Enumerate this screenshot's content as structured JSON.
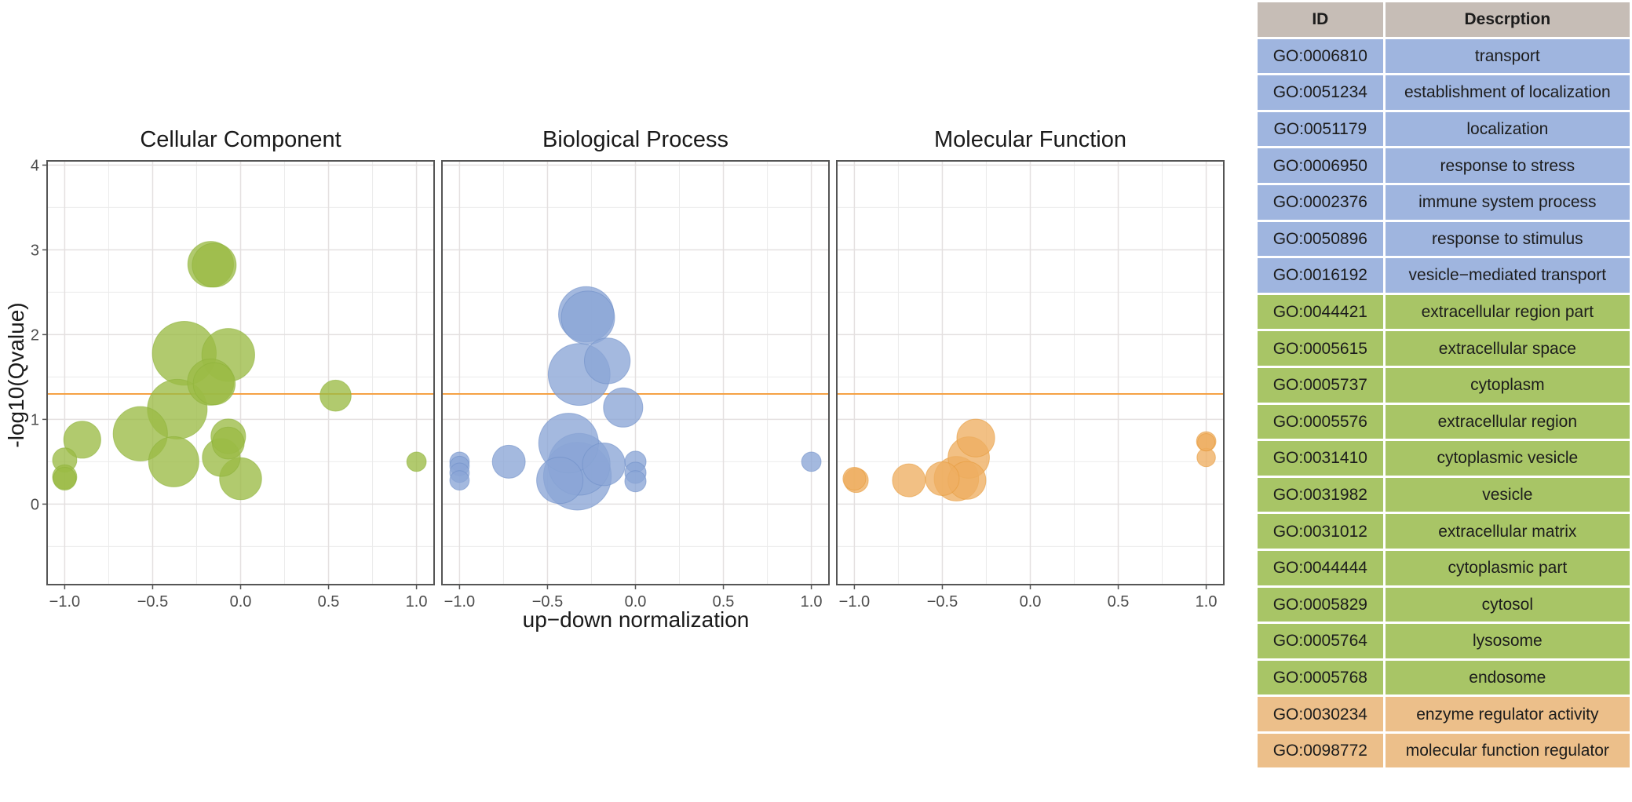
{
  "chart_data": {
    "type": "scatter",
    "subtype": "bubble",
    "xlabel": "up−down normalization",
    "ylabel": "-log10(Qvalue)",
    "xlim": [
      -1.1,
      1.1
    ],
    "ylim": [
      -0.95,
      4.05
    ],
    "x_ticks": [
      -1.0,
      -0.5,
      0.0,
      0.5,
      1.0
    ],
    "x_tick_labels": [
      "−1.0",
      "−0.5",
      "0.0",
      "0.5",
      "1.0"
    ],
    "y_ticks": [
      0,
      1,
      2,
      3,
      4
    ],
    "y_tick_labels": [
      "0",
      "1",
      "2",
      "3",
      "4"
    ],
    "threshold_line": {
      "y": 1.3,
      "color": "#f5a245"
    },
    "grid": true,
    "panels": [
      {
        "title": "Cellular Component",
        "color": "#8db33a",
        "fill": "#9bbb45",
        "points": [
          {
            "x": -0.17,
            "y": 2.83,
            "size": 3.2
          },
          {
            "x": -0.15,
            "y": 2.82,
            "size": 2.9
          },
          {
            "x": -0.32,
            "y": 1.78,
            "size": 7.0
          },
          {
            "x": -0.07,
            "y": 1.76,
            "size": 4.5
          },
          {
            "x": -0.17,
            "y": 1.44,
            "size": 3.3
          },
          {
            "x": -0.15,
            "y": 1.42,
            "size": 2.6
          },
          {
            "x": -0.36,
            "y": 1.12,
            "size": 6.0
          },
          {
            "x": -0.57,
            "y": 0.83,
            "size": 4.8
          },
          {
            "x": -0.9,
            "y": 0.76,
            "size": 1.9
          },
          {
            "x": -0.07,
            "y": 0.8,
            "size": 1.6
          },
          {
            "x": -0.07,
            "y": 0.72,
            "size": 1.3
          },
          {
            "x": -0.11,
            "y": 0.55,
            "size": 2.0
          },
          {
            "x": -0.38,
            "y": 0.5,
            "size": 4.0
          },
          {
            "x": -1.0,
            "y": 0.52,
            "size": 0.6
          },
          {
            "x": -1.0,
            "y": 0.32,
            "size": 0.6
          },
          {
            "x": -1.0,
            "y": 0.3,
            "size": 0.5
          },
          {
            "x": 0.0,
            "y": 0.3,
            "size": 2.6
          },
          {
            "x": 0.54,
            "y": 1.28,
            "size": 1.2
          },
          {
            "x": 1.0,
            "y": 0.5,
            "size": 0.3
          }
        ]
      },
      {
        "title": "Biological Process",
        "color": "#6f8fc8",
        "fill": "#8aa5d6",
        "points": [
          {
            "x": -0.28,
            "y": 2.24,
            "size": 5.0
          },
          {
            "x": -0.27,
            "y": 2.2,
            "size": 4.6
          },
          {
            "x": -0.16,
            "y": 1.69,
            "size": 3.2
          },
          {
            "x": -0.32,
            "y": 1.53,
            "size": 6.5
          },
          {
            "x": -0.07,
            "y": 1.14,
            "size": 2.2
          },
          {
            "x": -0.38,
            "y": 0.72,
            "size": 6.0
          },
          {
            "x": -0.32,
            "y": 0.47,
            "size": 6.5
          },
          {
            "x": -0.18,
            "y": 0.47,
            "size": 2.7
          },
          {
            "x": -0.43,
            "y": 0.28,
            "size": 3.3
          },
          {
            "x": -0.33,
            "y": 0.33,
            "size": 8.0
          },
          {
            "x": -0.72,
            "y": 0.5,
            "size": 1.4
          },
          {
            "x": -1.0,
            "y": 0.5,
            "size": 0.3
          },
          {
            "x": -1.0,
            "y": 0.45,
            "size": 0.3
          },
          {
            "x": -1.0,
            "y": 0.37,
            "size": 0.3
          },
          {
            "x": -1.0,
            "y": 0.28,
            "size": 0.3
          },
          {
            "x": 0.0,
            "y": 0.5,
            "size": 0.4
          },
          {
            "x": 0.0,
            "y": 0.37,
            "size": 0.4
          },
          {
            "x": 0.0,
            "y": 0.27,
            "size": 0.4
          },
          {
            "x": 1.0,
            "y": 0.5,
            "size": 0.3
          }
        ]
      },
      {
        "title": "Molecular Function",
        "color": "#e69b3c",
        "fill": "#eeae62",
        "points": [
          {
            "x": -0.31,
            "y": 0.78,
            "size": 2.0
          },
          {
            "x": -0.35,
            "y": 0.55,
            "size": 2.5
          },
          {
            "x": -0.42,
            "y": 0.3,
            "size": 3.0
          },
          {
            "x": -0.36,
            "y": 0.28,
            "size": 2.0
          },
          {
            "x": -0.5,
            "y": 0.3,
            "size": 1.5
          },
          {
            "x": -0.69,
            "y": 0.28,
            "size": 1.4
          },
          {
            "x": -0.99,
            "y": 0.28,
            "size": 0.6
          },
          {
            "x": -1.0,
            "y": 0.3,
            "size": 0.5
          },
          {
            "x": 1.0,
            "y": 0.74,
            "size": 0.3
          },
          {
            "x": 1.0,
            "y": 0.73,
            "size": 0.2
          },
          {
            "x": 1.0,
            "y": 0.55,
            "size": 0.25
          }
        ]
      }
    ]
  },
  "table": {
    "headers": [
      "ID",
      "Descrption"
    ],
    "header_color": "#c6bdb6",
    "rows": [
      {
        "id": "GO:0006810",
        "desc": "transport",
        "color": "#9fb5df"
      },
      {
        "id": "GO:0051234",
        "desc": "establishment of localization",
        "color": "#9fb5df"
      },
      {
        "id": "GO:0051179",
        "desc": "localization",
        "color": "#9fb5df"
      },
      {
        "id": "GO:0006950",
        "desc": "response to stress",
        "color": "#9fb5df"
      },
      {
        "id": "GO:0002376",
        "desc": "immune system process",
        "color": "#9fb5df"
      },
      {
        "id": "GO:0050896",
        "desc": "response to stimulus",
        "color": "#9fb5df"
      },
      {
        "id": "GO:0016192",
        "desc": "vesicle−mediated transport",
        "color": "#9fb5df"
      },
      {
        "id": "GO:0044421",
        "desc": "extracellular region part",
        "color": "#a8c566"
      },
      {
        "id": "GO:0005615",
        "desc": "extracellular space",
        "color": "#a8c566"
      },
      {
        "id": "GO:0005737",
        "desc": "cytoplasm",
        "color": "#a8c566"
      },
      {
        "id": "GO:0005576",
        "desc": "extracellular region",
        "color": "#a8c566"
      },
      {
        "id": "GO:0031410",
        "desc": "cytoplasmic vesicle",
        "color": "#a8c566"
      },
      {
        "id": "GO:0031982",
        "desc": "vesicle",
        "color": "#a8c566"
      },
      {
        "id": "GO:0031012",
        "desc": "extracellular matrix",
        "color": "#a8c566"
      },
      {
        "id": "GO:0044444",
        "desc": "cytoplasmic part",
        "color": "#a8c566"
      },
      {
        "id": "GO:0005829",
        "desc": "cytosol",
        "color": "#a8c566"
      },
      {
        "id": "GO:0005764",
        "desc": "lysosome",
        "color": "#a8c566"
      },
      {
        "id": "GO:0005768",
        "desc": "endosome",
        "color": "#a8c566"
      },
      {
        "id": "GO:0030234",
        "desc": "enzyme regulator activity",
        "color": "#ecbf8a"
      },
      {
        "id": "GO:0098772",
        "desc": "molecular function regulator",
        "color": "#ecbf8a"
      }
    ]
  }
}
